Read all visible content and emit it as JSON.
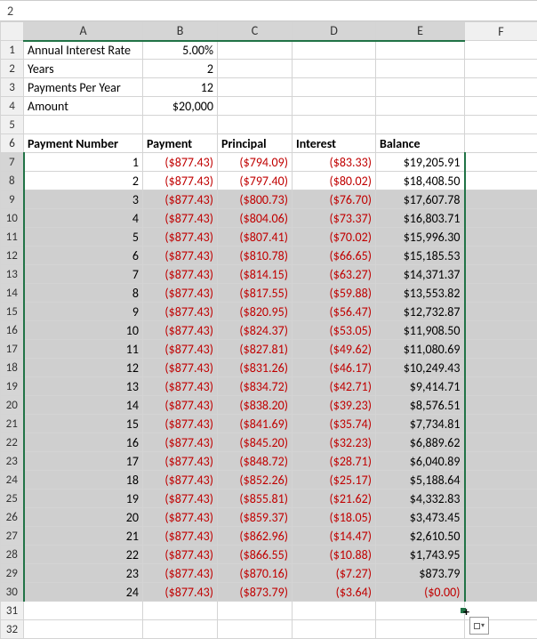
{
  "formula_bar": "2",
  "columns": [
    "A",
    "B",
    "C",
    "D",
    "E",
    "F"
  ],
  "row_numbers": [
    1,
    2,
    3,
    4,
    5,
    6,
    7,
    8,
    9,
    10,
    11,
    12,
    13,
    14,
    15,
    16,
    17,
    18,
    19,
    20,
    21,
    22,
    23,
    24,
    25,
    26,
    27,
    28,
    29,
    30,
    31,
    32
  ],
  "params": {
    "r1A": "Annual Interest Rate",
    "r1B": "5.00%",
    "r2A": "Years",
    "r2B": "2",
    "r3A": "Payments Per Year",
    "r3B": "12",
    "r4A": "Amount",
    "r4B": "$20,000"
  },
  "headers": {
    "A": "Payment Number",
    "B": "Payment",
    "C": "Principal",
    "D": "Interest",
    "E": "Balance"
  },
  "rows": [
    {
      "n": "1",
      "pay": "($877.43)",
      "prin": "($794.09)",
      "int": "($83.33)",
      "bal": "$19,205.91"
    },
    {
      "n": "2",
      "pay": "($877.43)",
      "prin": "($797.40)",
      "int": "($80.02)",
      "bal": "$18,408.50"
    },
    {
      "n": "3",
      "pay": "($877.43)",
      "prin": "($800.73)",
      "int": "($76.70)",
      "bal": "$17,607.78"
    },
    {
      "n": "4",
      "pay": "($877.43)",
      "prin": "($804.06)",
      "int": "($73.37)",
      "bal": "$16,803.71"
    },
    {
      "n": "5",
      "pay": "($877.43)",
      "prin": "($807.41)",
      "int": "($70.02)",
      "bal": "$15,996.30"
    },
    {
      "n": "6",
      "pay": "($877.43)",
      "prin": "($810.78)",
      "int": "($66.65)",
      "bal": "$15,185.53"
    },
    {
      "n": "7",
      "pay": "($877.43)",
      "prin": "($814.15)",
      "int": "($63.27)",
      "bal": "$14,371.37"
    },
    {
      "n": "8",
      "pay": "($877.43)",
      "prin": "($817.55)",
      "int": "($59.88)",
      "bal": "$13,553.82"
    },
    {
      "n": "9",
      "pay": "($877.43)",
      "prin": "($820.95)",
      "int": "($56.47)",
      "bal": "$12,732.87"
    },
    {
      "n": "10",
      "pay": "($877.43)",
      "prin": "($824.37)",
      "int": "($53.05)",
      "bal": "$11,908.50"
    },
    {
      "n": "11",
      "pay": "($877.43)",
      "prin": "($827.81)",
      "int": "($49.62)",
      "bal": "$11,080.69"
    },
    {
      "n": "12",
      "pay": "($877.43)",
      "prin": "($831.26)",
      "int": "($46.17)",
      "bal": "$10,249.43"
    },
    {
      "n": "13",
      "pay": "($877.43)",
      "prin": "($834.72)",
      "int": "($42.71)",
      "bal": "$9,414.71"
    },
    {
      "n": "14",
      "pay": "($877.43)",
      "prin": "($838.20)",
      "int": "($39.23)",
      "bal": "$8,576.51"
    },
    {
      "n": "15",
      "pay": "($877.43)",
      "prin": "($841.69)",
      "int": "($35.74)",
      "bal": "$7,734.81"
    },
    {
      "n": "16",
      "pay": "($877.43)",
      "prin": "($845.20)",
      "int": "($32.23)",
      "bal": "$6,889.62"
    },
    {
      "n": "17",
      "pay": "($877.43)",
      "prin": "($848.72)",
      "int": "($28.71)",
      "bal": "$6,040.89"
    },
    {
      "n": "18",
      "pay": "($877.43)",
      "prin": "($852.26)",
      "int": "($25.17)",
      "bal": "$5,188.64"
    },
    {
      "n": "19",
      "pay": "($877.43)",
      "prin": "($855.81)",
      "int": "($21.62)",
      "bal": "$4,332.83"
    },
    {
      "n": "20",
      "pay": "($877.43)",
      "prin": "($859.37)",
      "int": "($18.05)",
      "bal": "$3,473.45"
    },
    {
      "n": "21",
      "pay": "($877.43)",
      "prin": "($862.96)",
      "int": "($14.47)",
      "bal": "$2,610.50"
    },
    {
      "n": "22",
      "pay": "($877.43)",
      "prin": "($866.55)",
      "int": "($10.88)",
      "bal": "$1,743.95"
    },
    {
      "n": "23",
      "pay": "($877.43)",
      "prin": "($870.16)",
      "int": "($7.27)",
      "bal": "$873.79"
    },
    {
      "n": "24",
      "pay": "($877.43)",
      "prin": "($873.79)",
      "int": "($3.64)",
      "bal": "($0.00)"
    }
  ],
  "colors": {
    "selection_border": "#217346",
    "negative_text": "#c00000",
    "header_bg": "#f0f0f0",
    "sel_fill": "#cfcfcf",
    "grid": "#d4d4d4"
  }
}
